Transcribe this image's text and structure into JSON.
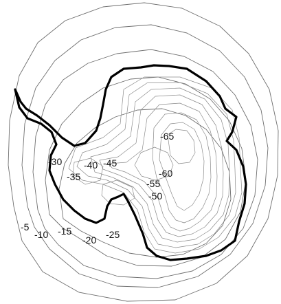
{
  "map": {
    "contour_labels": [
      "-5",
      "-10",
      "-15",
      "-20",
      "-25",
      "-30",
      "-35",
      "-40",
      "-45",
      "-50",
      "-55",
      "-60",
      "-65"
    ],
    "colors": {
      "contour": "#6e6e6e",
      "coastline": "#000000",
      "background": "#ffffff"
    }
  }
}
